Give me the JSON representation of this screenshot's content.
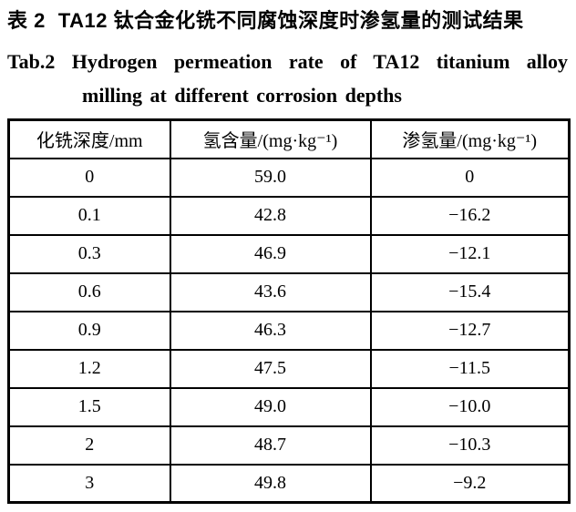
{
  "caption_zh": {
    "label": "表 2",
    "text": "TA12 钛合金化铣不同腐蚀深度时渗氢量的测试结果"
  },
  "caption_en": {
    "label": "Tab.2",
    "line1": "Hydrogen permeation rate of TA12 titanium alloy",
    "line2": "milling at different corrosion depths"
  },
  "table": {
    "headers": [
      "化铣深度/mm",
      "氢含量/(mg·kg⁻¹)",
      "渗氢量/(mg·kg⁻¹)"
    ],
    "rows": [
      [
        "0",
        "59.0",
        "0"
      ],
      [
        "0.1",
        "42.8",
        "−16.2"
      ],
      [
        "0.3",
        "46.9",
        "−12.1"
      ],
      [
        "0.6",
        "43.6",
        "−15.4"
      ],
      [
        "0.9",
        "46.3",
        "−12.7"
      ],
      [
        "1.2",
        "47.5",
        "−11.5"
      ],
      [
        "1.5",
        "49.0",
        "−10.0"
      ],
      [
        "2",
        "48.7",
        "−10.3"
      ],
      [
        "3",
        "49.8",
        "−9.2"
      ]
    ]
  },
  "chart_data": {
    "type": "table",
    "title_zh": "表 2 TA12 钛合金化铣不同腐蚀深度时渗氢量的测试结果",
    "title_en": "Tab.2 Hydrogen permeation rate of TA12 titanium alloy milling at different corrosion depths",
    "columns": [
      "化铣深度/mm",
      "氢含量/(mg·kg⁻¹)",
      "渗氢量/(mg·kg⁻¹)"
    ],
    "rows": [
      [
        0,
        59.0,
        0
      ],
      [
        0.1,
        42.8,
        -16.2
      ],
      [
        0.3,
        46.9,
        -12.1
      ],
      [
        0.6,
        43.6,
        -15.4
      ],
      [
        0.9,
        46.3,
        -12.7
      ],
      [
        1.2,
        47.5,
        -11.5
      ],
      [
        1.5,
        49.0,
        -10.0
      ],
      [
        2,
        48.7,
        -10.3
      ],
      [
        3,
        49.8,
        -9.2
      ]
    ],
    "colors": {
      "text": "#000000",
      "border": "#000000",
      "background": "#ffffff"
    }
  }
}
